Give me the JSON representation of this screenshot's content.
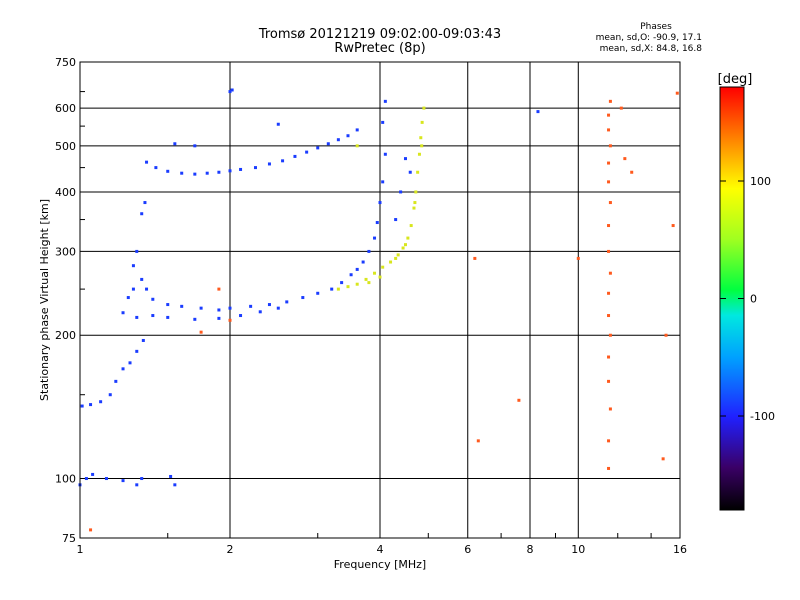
{
  "title": {
    "line1": "Tromsø 20121219 09:02:00-09:03:43",
    "line2": "RwPretec (8p)"
  },
  "phases": {
    "heading": "Phases",
    "line_o": "mean, sd,O: -90.9, 17.1",
    "line_x": "mean, sd,X:  84.8, 16.8"
  },
  "chart_data": {
    "type": "scatter",
    "xlabel": "Frequency [MHz]",
    "ylabel": "Stationary phase Virtual Height [km]",
    "x_scale": "log",
    "y_scale": "log",
    "xlim": [
      1,
      16
    ],
    "ylim": [
      75,
      750
    ],
    "grid": true,
    "x_ticks": [
      1,
      2,
      4,
      6,
      8,
      10,
      16
    ],
    "y_ticks": [
      75,
      100,
      200,
      300,
      400,
      500,
      600,
      750
    ],
    "x_tick_labels": [
      "1",
      "2",
      "4",
      "6",
      "8",
      "10",
      "16"
    ],
    "y_tick_labels": [
      "75",
      "100",
      "200",
      "300",
      "400",
      "500",
      "600",
      "750"
    ],
    "colorbar": {
      "label": "[deg]",
      "range": [
        -180,
        180
      ],
      "ticks": [
        -100,
        0,
        100
      ],
      "tick_labels": [
        "-100",
        "0",
        "100"
      ]
    },
    "series": [
      {
        "mode": "O",
        "color": "#1a3cff",
        "points": [
          [
            1.0,
            97
          ],
          [
            1.03,
            100
          ],
          [
            1.06,
            102
          ],
          [
            1.13,
            100
          ],
          [
            1.22,
            99
          ],
          [
            1.3,
            97
          ],
          [
            1.33,
            100
          ],
          [
            1.52,
            101
          ],
          [
            1.55,
            97
          ],
          [
            1.01,
            142
          ],
          [
            1.05,
            143
          ],
          [
            1.1,
            145
          ],
          [
            1.15,
            150
          ],
          [
            1.18,
            160
          ],
          [
            1.22,
            170
          ],
          [
            1.26,
            175
          ],
          [
            1.3,
            185
          ],
          [
            1.34,
            195
          ],
          [
            1.22,
            223
          ],
          [
            1.25,
            240
          ],
          [
            1.28,
            250
          ],
          [
            1.33,
            262
          ],
          [
            1.36,
            250
          ],
          [
            1.4,
            238
          ],
          [
            1.5,
            232
          ],
          [
            1.6,
            230
          ],
          [
            1.75,
            228
          ],
          [
            1.9,
            226
          ],
          [
            2.0,
            228
          ],
          [
            2.2,
            230
          ],
          [
            2.4,
            232
          ],
          [
            2.6,
            235
          ],
          [
            2.8,
            240
          ],
          [
            3.0,
            245
          ],
          [
            3.2,
            250
          ],
          [
            3.35,
            258
          ],
          [
            3.5,
            268
          ],
          [
            3.6,
            275
          ],
          [
            3.7,
            285
          ],
          [
            3.8,
            300
          ],
          [
            3.9,
            320
          ],
          [
            3.95,
            345
          ],
          [
            4.0,
            380
          ],
          [
            4.05,
            420
          ],
          [
            4.1,
            480
          ],
          [
            4.05,
            560
          ],
          [
            4.1,
            620
          ],
          [
            1.3,
            218
          ],
          [
            1.4,
            220
          ],
          [
            1.5,
            218
          ],
          [
            1.7,
            216
          ],
          [
            1.9,
            217
          ],
          [
            2.1,
            220
          ],
          [
            2.3,
            224
          ],
          [
            2.5,
            228
          ],
          [
            1.33,
            360
          ],
          [
            1.35,
            380
          ],
          [
            1.3,
            300
          ],
          [
            1.28,
            280
          ],
          [
            1.36,
            462
          ],
          [
            1.42,
            450
          ],
          [
            1.5,
            442
          ],
          [
            1.6,
            438
          ],
          [
            1.7,
            436
          ],
          [
            1.8,
            438
          ],
          [
            1.9,
            440
          ],
          [
            2.0,
            443
          ],
          [
            2.1,
            446
          ],
          [
            2.25,
            450
          ],
          [
            2.4,
            458
          ],
          [
            2.55,
            465
          ],
          [
            2.7,
            475
          ],
          [
            2.85,
            485
          ],
          [
            3.0,
            495
          ],
          [
            3.15,
            505
          ],
          [
            3.3,
            515
          ],
          [
            3.45,
            525
          ],
          [
            3.6,
            540
          ],
          [
            1.55,
            505
          ],
          [
            1.7,
            500
          ],
          [
            2.5,
            555
          ],
          [
            2.0,
            650
          ],
          [
            2.02,
            655
          ],
          [
            8.3,
            590
          ],
          [
            4.5,
            470
          ],
          [
            4.6,
            440
          ],
          [
            4.4,
            400
          ],
          [
            4.3,
            350
          ]
        ]
      },
      {
        "mode": "X",
        "color": "#d8e61e",
        "points": [
          [
            3.3,
            250
          ],
          [
            3.45,
            253
          ],
          [
            3.6,
            256
          ],
          [
            3.75,
            262
          ],
          [
            3.9,
            270
          ],
          [
            4.05,
            278
          ],
          [
            4.2,
            285
          ],
          [
            4.35,
            295
          ],
          [
            4.45,
            305
          ],
          [
            4.55,
            320
          ],
          [
            4.62,
            340
          ],
          [
            4.68,
            370
          ],
          [
            4.72,
            400
          ],
          [
            4.76,
            440
          ],
          [
            4.8,
            480
          ],
          [
            4.83,
            520
          ],
          [
            4.86,
            560
          ],
          [
            4.9,
            600
          ],
          [
            3.8,
            258
          ],
          [
            4.0,
            265
          ],
          [
            4.3,
            290
          ],
          [
            4.5,
            310
          ],
          [
            4.7,
            380
          ],
          [
            4.85,
            500
          ],
          [
            3.6,
            500
          ]
        ]
      },
      {
        "mode": "noise",
        "color": "#ff5a1e",
        "points": [
          [
            11.5,
            105
          ],
          [
            11.5,
            120
          ],
          [
            11.6,
            140
          ],
          [
            11.5,
            160
          ],
          [
            11.5,
            180
          ],
          [
            11.6,
            200
          ],
          [
            11.5,
            220
          ],
          [
            11.5,
            245
          ],
          [
            11.6,
            270
          ],
          [
            11.5,
            300
          ],
          [
            11.5,
            340
          ],
          [
            11.6,
            380
          ],
          [
            11.5,
            420
          ],
          [
            11.5,
            460
          ],
          [
            11.6,
            500
          ],
          [
            11.5,
            540
          ],
          [
            11.5,
            580
          ],
          [
            11.6,
            620
          ],
          [
            1.05,
            78
          ],
          [
            1.9,
            250
          ],
          [
            1.75,
            203
          ],
          [
            2.0,
            215
          ],
          [
            6.2,
            290
          ],
          [
            6.3,
            120
          ],
          [
            7.6,
            146
          ],
          [
            12.4,
            470
          ],
          [
            12.2,
            600
          ],
          [
            14.8,
            110
          ],
          [
            15.0,
            200
          ],
          [
            15.5,
            340
          ],
          [
            15.8,
            645
          ],
          [
            12.8,
            440
          ],
          [
            10.0,
            290
          ]
        ]
      }
    ]
  }
}
